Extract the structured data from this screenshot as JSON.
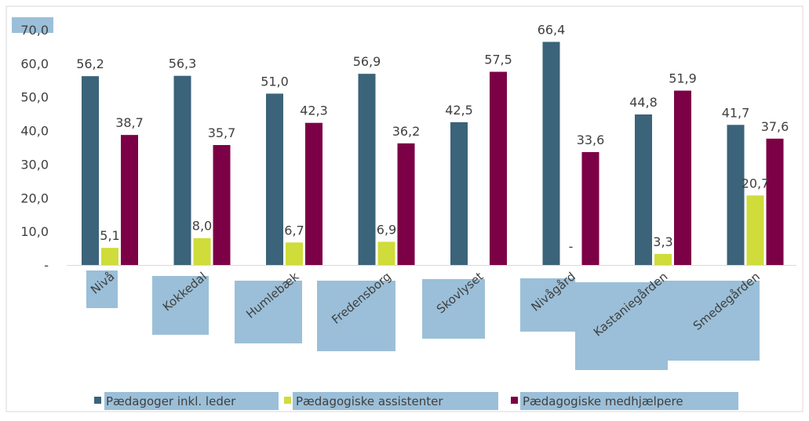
{
  "chart_data": {
    "type": "bar",
    "categories": [
      "Nivå",
      "Kokkedal",
      "Humlebæk",
      "Fredensborg",
      "Skovlyset",
      "Nivågård",
      "Kastaniegården",
      "Smedegården"
    ],
    "series": [
      {
        "name": "Pædagoger inkl. leder",
        "color": "#3b6379",
        "values": [
          56.2,
          56.3,
          51.0,
          56.9,
          42.5,
          66.4,
          44.8,
          41.7
        ],
        "labels": [
          "56,2",
          "56,3",
          "51,0",
          "56,9",
          "42,5",
          "66,4",
          "44,8",
          "41,7"
        ]
      },
      {
        "name": "Pædagogiske assistenter",
        "color": "#cfdc3a",
        "values": [
          5.1,
          8.0,
          6.7,
          6.9,
          null,
          null,
          3.3,
          20.7
        ],
        "labels": [
          "5,1",
          "8,0",
          "6,7",
          "6,9",
          "",
          "-",
          "3,3",
          "20,7"
        ]
      },
      {
        "name": "Pædagogiske medhjælpere",
        "color": "#7c0045",
        "values": [
          38.7,
          35.7,
          42.3,
          36.2,
          57.5,
          33.6,
          51.9,
          37.6
        ],
        "labels": [
          "38,7",
          "35,7",
          "42,3",
          "36,2",
          "57,5",
          "33,6",
          "51,9",
          "37,6"
        ]
      }
    ],
    "yticks": [
      0,
      10,
      20,
      30,
      40,
      50,
      60,
      70
    ],
    "ytick_labels": [
      "-",
      "10,0",
      "20,0",
      "30,0",
      "40,0",
      "50,0",
      "60,0",
      "70,0"
    ],
    "ylim": [
      0,
      70
    ],
    "grid": false,
    "legend_position": "bottom",
    "highlight_color": "#9bbfd8"
  }
}
